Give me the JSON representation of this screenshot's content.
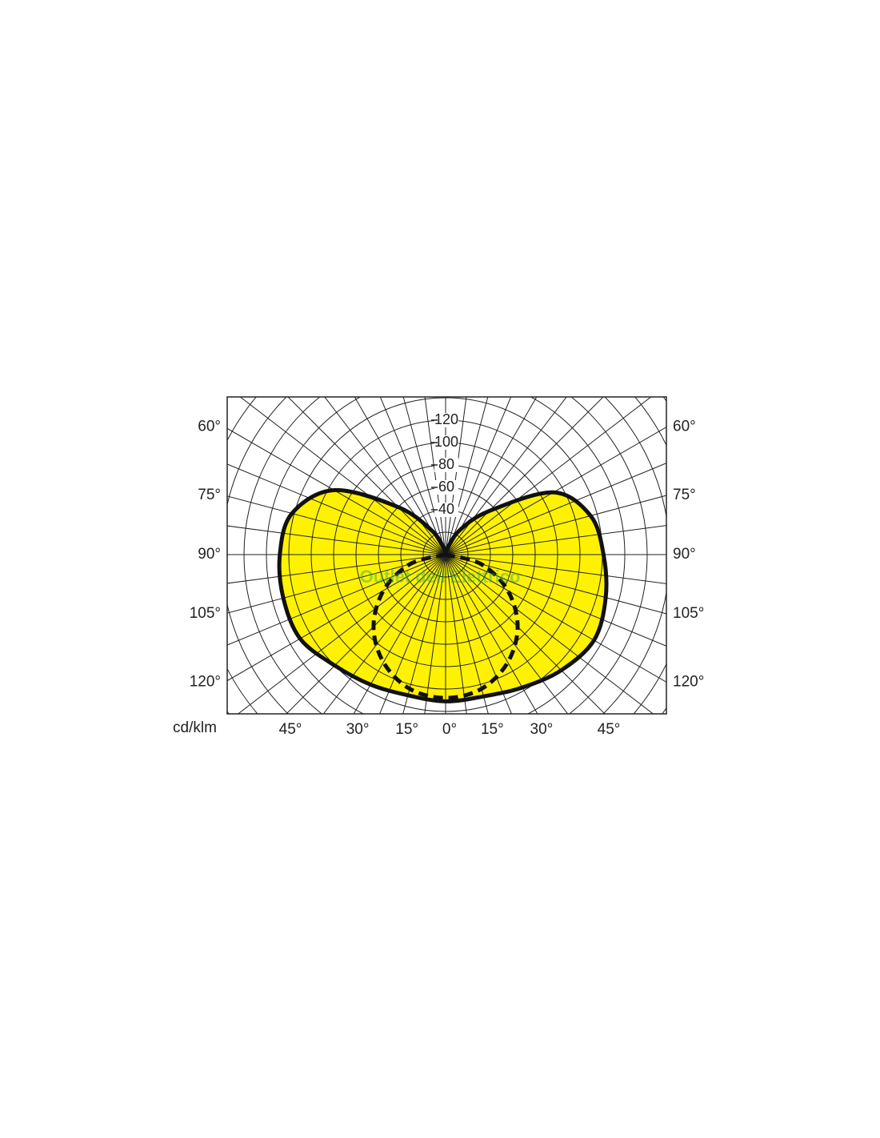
{
  "chart_data": {
    "type": "polar",
    "unit_label": "cd/klm",
    "watermark": "Outlet dell'Elettrico",
    "rlim": [
      0,
      240
    ],
    "rticks": [
      40,
      60,
      80,
      100,
      120
    ],
    "side_angle_ticks": [
      {
        "value": 120,
        "label": "120°"
      },
      {
        "value": 105,
        "label": "105°"
      },
      {
        "value": 90,
        "label": "90°"
      },
      {
        "value": 75,
        "label": "75°"
      },
      {
        "value": 60,
        "label": "60°"
      }
    ],
    "bottom_angle_ticks": [
      {
        "value": -45,
        "label": "45°"
      },
      {
        "value": -30,
        "label": "30°"
      },
      {
        "value": -15,
        "label": "15°"
      },
      {
        "value": 0,
        "label": "0°"
      },
      {
        "value": 15,
        "label": "15°"
      },
      {
        "value": 30,
        "label": "30°"
      },
      {
        "value": 45,
        "label": "45°"
      }
    ],
    "grid": true,
    "series": [
      {
        "color": "#111111",
        "fill": "#fff200",
        "dashed": false,
        "angles": [
          -180,
          -165,
          -150,
          -135,
          -120,
          -105,
          -90,
          -75,
          -60,
          -45,
          -30,
          -15,
          0,
          15,
          30,
          45,
          60,
          75,
          90,
          105,
          120,
          135,
          150,
          165,
          180
        ],
        "values": [
          0,
          6,
          25,
          60,
          115,
          142,
          148,
          150,
          150,
          140,
          134,
          130,
          131,
          131,
          137,
          146,
          153,
          148,
          141,
          134,
          111,
          55,
          25,
          5,
          0
        ]
      },
      {
        "color": "#111111",
        "fill": "none",
        "dashed": true,
        "angles": [
          -90,
          -75,
          -60,
          -45,
          -30,
          -15,
          0,
          15,
          30,
          45,
          60,
          75,
          90
        ],
        "values": [
          0,
          33,
          64,
          91,
          111,
          124,
          128,
          124,
          111,
          91,
          64,
          33,
          0
        ]
      }
    ]
  }
}
